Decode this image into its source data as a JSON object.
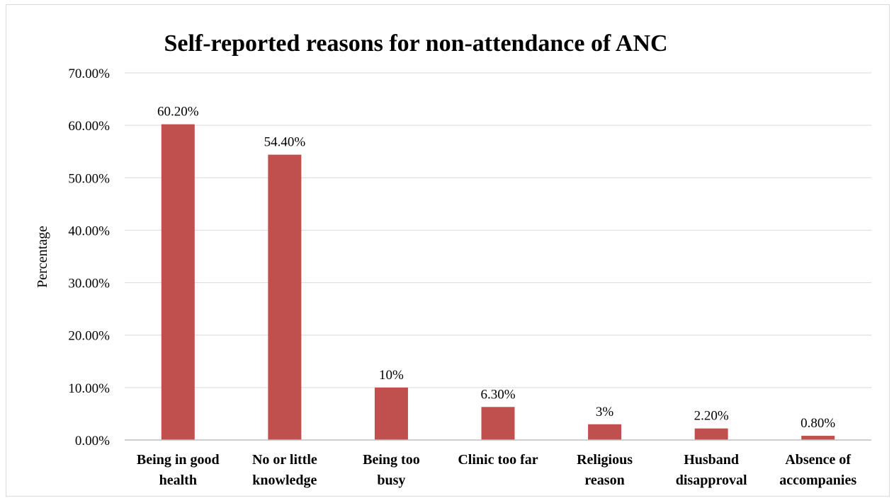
{
  "chart_data": {
    "type": "bar",
    "title": "Self-reported reasons for non-attendance of ANC",
    "xlabel": "",
    "ylabel": "Percentage",
    "ylim": [
      0,
      70
    ],
    "yticks": [
      0,
      10,
      20,
      30,
      40,
      50,
      60,
      70
    ],
    "ytick_labels": [
      "0.00%",
      "10.00%",
      "20.00%",
      "30.00%",
      "40.00%",
      "50.00%",
      "60.00%",
      "70.00%"
    ],
    "grid": true,
    "legend": "none",
    "bar_color": "#c0504d",
    "categories": [
      [
        "Being in good",
        "health"
      ],
      [
        "No or little",
        "knowledge"
      ],
      [
        "Being too",
        "busy"
      ],
      [
        "Clinic too far"
      ],
      [
        "Religious",
        "reason"
      ],
      [
        "Husband",
        "disapproval"
      ],
      [
        "Absence of",
        "accompanies"
      ]
    ],
    "values": [
      60.2,
      54.4,
      10,
      6.3,
      3,
      2.2,
      0.8
    ],
    "data_labels": [
      "60.20%",
      "54.40%",
      "10%",
      "6.30%",
      "3%",
      "2.20%",
      "0.80%"
    ]
  }
}
